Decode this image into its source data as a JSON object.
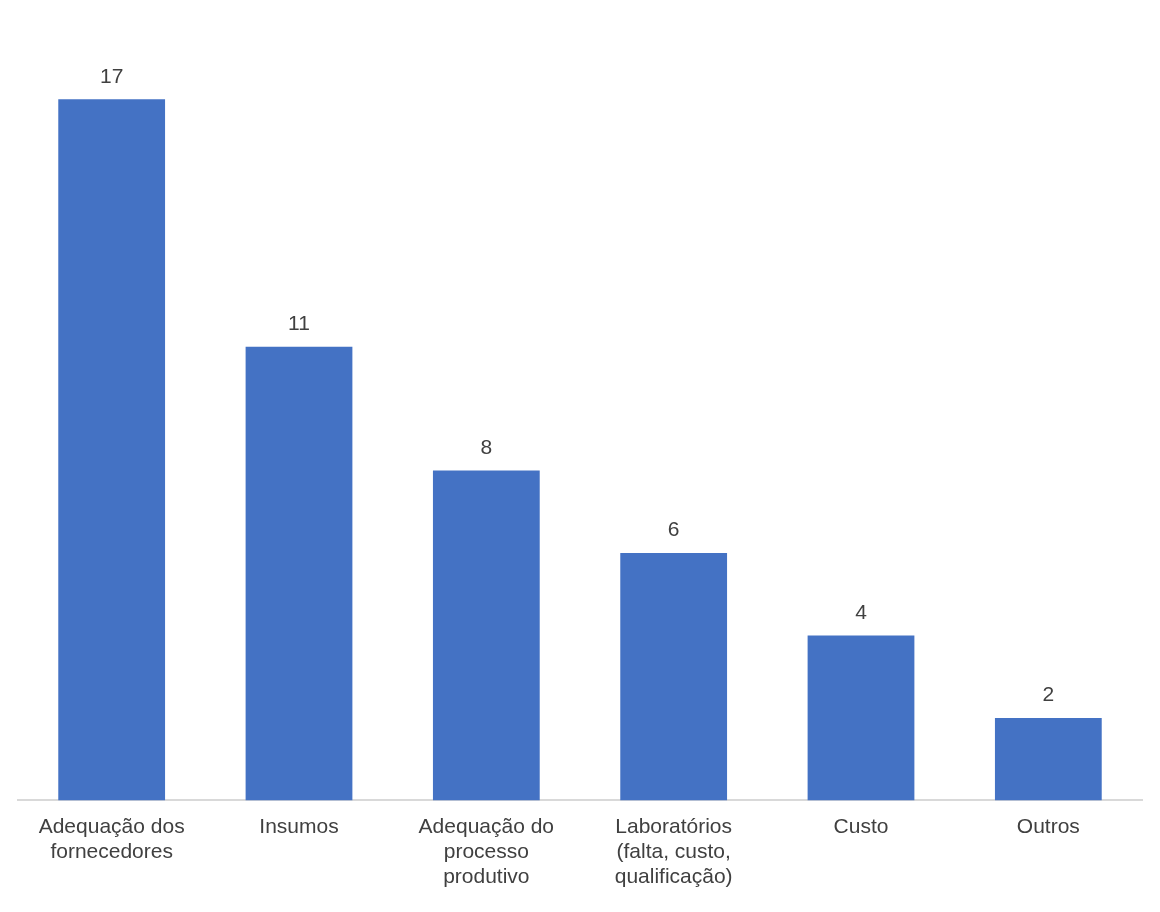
{
  "chart_data": {
    "type": "bar",
    "categories": [
      "Adequação dos fornecedores",
      "Insumos",
      "Adequação do processo produtivo",
      "Laboratórios (falta, custo, qualificação)",
      "Custo",
      "Outros"
    ],
    "values": [
      17,
      11,
      8,
      6,
      4,
      2
    ],
    "color": "#4472c4",
    "data_labels": true,
    "legend": false
  }
}
